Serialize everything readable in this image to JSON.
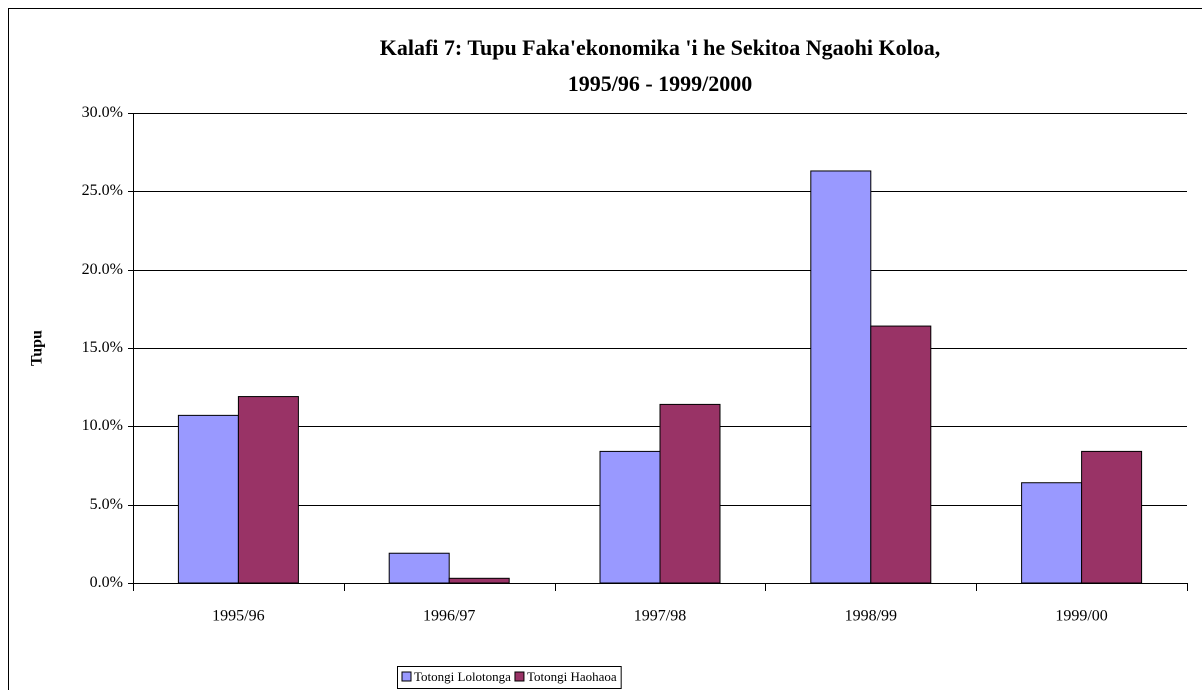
{
  "chart_data": {
    "type": "bar",
    "title": [
      "Kalafi 7: Tupu Faka'ekonomika 'i he Sekitoa Ngaohi Koloa,",
      "1995/96 - 1999/2000"
    ],
    "y_label": "Tupu",
    "categories": [
      "1995/96",
      "1996/97",
      "1997/98",
      "1998/99",
      "1999/00"
    ],
    "series": [
      {
        "name": "Totongi Lolotonga",
        "color": "#9999ff",
        "values": [
          10.7,
          1.9,
          8.4,
          26.3,
          6.4
        ]
      },
      {
        "name": "Totongi Haohaoa",
        "color": "#993366",
        "values": [
          11.9,
          0.3,
          11.4,
          16.4,
          8.4
        ]
      }
    ],
    "ylim": [
      0,
      30
    ],
    "yticks": [
      {
        "value": 0,
        "label": "0.0%"
      },
      {
        "value": 5,
        "label": "5.0%"
      },
      {
        "value": 10,
        "label": "10.0%"
      },
      {
        "value": 15,
        "label": "15.0%"
      },
      {
        "value": 20,
        "label": "20.0%"
      },
      {
        "value": 25,
        "label": "25.0%"
      },
      {
        "value": 30,
        "label": "30.0%"
      }
    ],
    "grid": true,
    "legend": "bottom"
  }
}
